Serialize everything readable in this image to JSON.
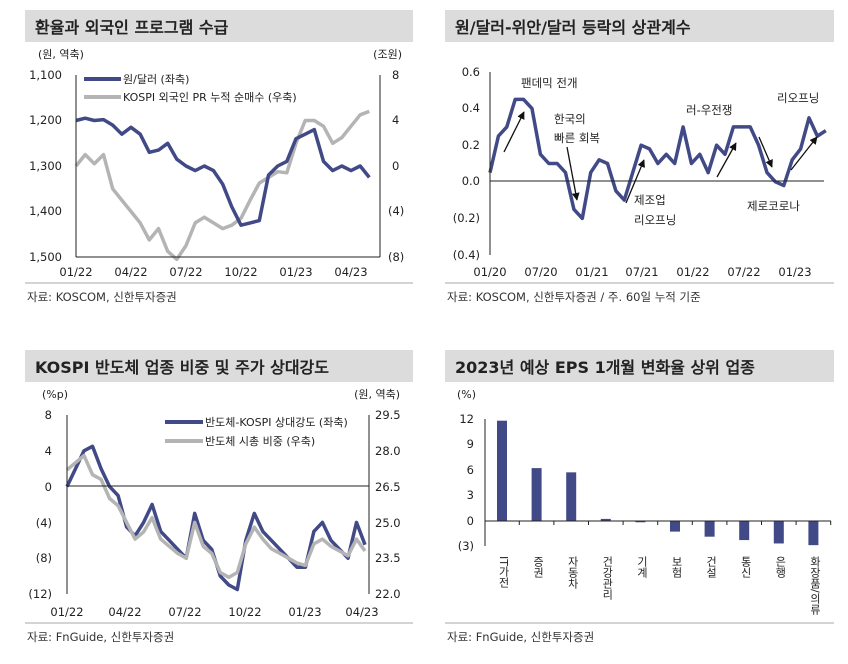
{
  "colors": {
    "navy": "#414a87",
    "gray": "#b4b4b4",
    "titlebar": "#dcdcdc"
  },
  "chart_data": [
    {
      "type": "line",
      "title": "환율과 외국인 프로그램 수급",
      "left_unit": "(원, 역축)",
      "right_unit": "(조원)",
      "left_ylim": [
        1100,
        1500
      ],
      "left_inverted": true,
      "right_ylim": [
        -8,
        8
      ],
      "left_ticks": [
        "1,100",
        "1,200",
        "1,300",
        "1,400",
        "1,500"
      ],
      "right_ticks": [
        "8",
        "4",
        "0",
        "(4)",
        "(8)"
      ],
      "x_ticks": [
        "01/22",
        "04/22",
        "07/22",
        "10/22",
        "01/23",
        "04/23"
      ],
      "x_domain_months": [
        0,
        16.5
      ],
      "series": [
        {
          "name": "원/달러 (좌축)",
          "axis": "left",
          "color": "#414a87",
          "values": [
            1200,
            1195,
            1200,
            1198,
            1210,
            1230,
            1215,
            1230,
            1270,
            1265,
            1250,
            1285,
            1300,
            1310,
            1300,
            1310,
            1340,
            1390,
            1430,
            1425,
            1420,
            1320,
            1300,
            1290,
            1240,
            1230,
            1220,
            1290,
            1310,
            1300,
            1310,
            1300,
            1325
          ]
        },
        {
          "name": "KOSPI 외국인 PR 누적 순매수 (우축)",
          "axis": "right",
          "color": "#b4b4b4",
          "values": [
            0,
            1.0,
            0.2,
            1.0,
            -2,
            -3,
            -4,
            -5,
            -6.5,
            -5.5,
            -7.5,
            -8.2,
            -7,
            -5,
            -4.5,
            -5,
            -5.5,
            -5.2,
            -4.6,
            -3,
            -1.5,
            -1,
            -0.5,
            -0.6,
            2,
            4,
            4,
            3.5,
            2,
            2.5,
            3.5,
            4.5,
            4.8
          ]
        }
      ],
      "source": "자료: KOSCOM, 신한투자증권"
    },
    {
      "type": "line",
      "title": "원/달러-위안/달러 등락의 상관계수",
      "ylim": [
        -0.4,
        0.6
      ],
      "y_ticks": [
        "0.6",
        "0.4",
        "0.2",
        "0.0",
        "(0.2)",
        "(0.4)"
      ],
      "x_ticks": [
        "01/20",
        "07/20",
        "01/21",
        "07/21",
        "01/22",
        "07/22",
        "01/23"
      ],
      "x_domain_months": [
        0,
        39.5
      ],
      "series": [
        {
          "name": "상관계수",
          "color": "#414a87",
          "values": [
            0.05,
            0.25,
            0.3,
            0.45,
            0.45,
            0.4,
            0.15,
            0.1,
            0.1,
            0.05,
            -0.15,
            -0.2,
            0.05,
            0.12,
            0.1,
            -0.05,
            -0.1,
            0.05,
            0.2,
            0.18,
            0.1,
            0.15,
            0.1,
            0.3,
            0.1,
            0.15,
            0.05,
            0.2,
            0.15,
            0.3,
            0.3,
            0.3,
            0.2,
            0.05,
            0,
            -0.02,
            0.12,
            0.18,
            0.35,
            0.25,
            0.28
          ]
        }
      ],
      "annotations": [
        "팬데믹 전개",
        "한국의",
        "빠른 회복",
        "제조업",
        "리오프닝",
        "러-우전쟁",
        "리오프닝",
        "제로코로나"
      ],
      "source": "자료: KOSCOM, 신한투자증권 / 주. 60일 누적 기준"
    },
    {
      "type": "line",
      "title": "KOSPI 반도체 업종 비중 및 주가 상대강도",
      "left_unit": "(%p)",
      "right_unit": "(원, 역축)",
      "left_ylim": [
        -12,
        8
      ],
      "right_ylim": [
        22.0,
        29.5
      ],
      "left_ticks": [
        "8",
        "4",
        "0",
        "(4)",
        "(8)",
        "(12)"
      ],
      "right_ticks": [
        "29.5",
        "28.0",
        "26.5",
        "25.0",
        "23.5",
        "22.0"
      ],
      "x_ticks": [
        "01/22",
        "04/22",
        "07/22",
        "10/22",
        "01/23",
        "04/23"
      ],
      "x_domain_months": [
        0,
        15.6
      ],
      "series": [
        {
          "name": "반도체-KOSPI 상대강도 (좌축)",
          "axis": "left",
          "color": "#414a87",
          "values": [
            0,
            2,
            4,
            4.5,
            2,
            0,
            -1,
            -4.5,
            -5.5,
            -4,
            -2,
            -5,
            -6,
            -7,
            -8,
            -3,
            -6,
            -7,
            -10,
            -11,
            -11.5,
            -6,
            -3,
            -5,
            -6,
            -7,
            -8,
            -9,
            -9,
            -5,
            -4,
            -6,
            -7,
            -8,
            -4,
            -6.5
          ]
        },
        {
          "name": "반도체 시총 비중 (우축)",
          "axis": "right",
          "color": "#b4b4b4",
          "values": [
            27.2,
            27.5,
            27.8,
            27,
            26.8,
            26,
            25.7,
            25,
            24.3,
            24.6,
            25.2,
            24.3,
            24,
            23.7,
            23.5,
            25,
            24,
            23.7,
            22.9,
            22.7,
            22.9,
            24.1,
            24.8,
            24.3,
            23.9,
            23.7,
            23.5,
            23.3,
            23.2,
            24.1,
            24.3,
            24,
            23.8,
            23.6,
            24.3,
            23.8
          ]
        }
      ],
      "source": "자료: FnGuide, 신한투자증권"
    },
    {
      "type": "bar",
      "title": "2023년 예상 EPS 1개월 변화율 상위 업종",
      "ylabel": "(%)",
      "ylim": [
        -3,
        12
      ],
      "y_ticks": [
        "12",
        "9",
        "6",
        "3",
        "0",
        "(3)"
      ],
      "categories": [
        "IT가전",
        "증권",
        "자동차",
        "건강관리",
        "기계",
        "보험",
        "건설",
        "통신",
        "은행",
        "화장품/의류"
      ],
      "values": [
        11.8,
        6.2,
        5.7,
        0.2,
        -0.2,
        -1.3,
        -1.9,
        -2.3,
        -2.7,
        -2.9
      ],
      "color": "#414a87",
      "source": "자료: FnGuide, 신한투자증권"
    }
  ]
}
